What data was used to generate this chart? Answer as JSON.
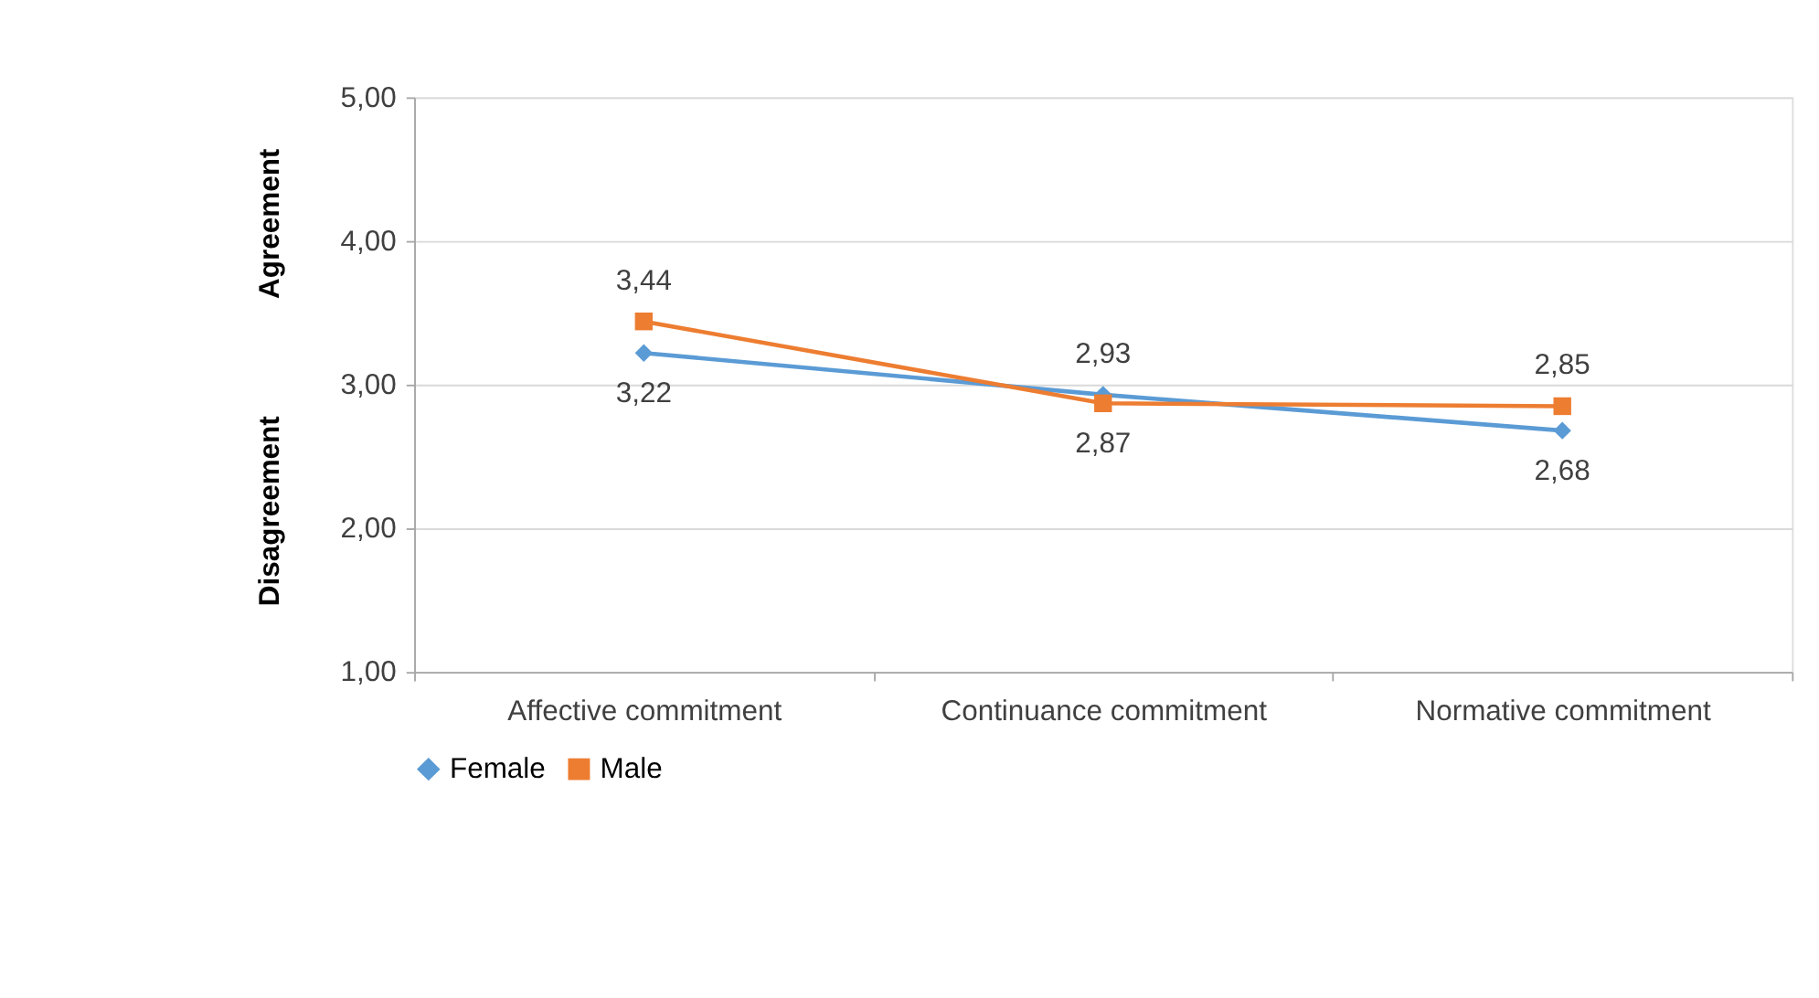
{
  "chart_data": {
    "type": "line",
    "categories": [
      "Affective commitment",
      "Continuance commitment",
      "Normative commitment"
    ],
    "series": [
      {
        "name": "Female",
        "color": "#5b9bd5",
        "marker": "diamond",
        "values": [
          3.22,
          2.93,
          2.68
        ],
        "value_labels": [
          "3,22",
          "2,93",
          "2,68"
        ]
      },
      {
        "name": "Male",
        "color": "#ed7d31",
        "marker": "square",
        "values": [
          3.44,
          2.87,
          2.85
        ],
        "value_labels": [
          "3,44",
          "2,87",
          "2,85"
        ]
      }
    ],
    "ylim": [
      1,
      5
    ],
    "yticks": [
      {
        "value": 1,
        "label": "1,00"
      },
      {
        "value": 2,
        "label": "2,00"
      },
      {
        "value": 3,
        "label": "3,00"
      },
      {
        "value": 4,
        "label": "4,00"
      },
      {
        "value": 5,
        "label": "5,00"
      }
    ],
    "grid": "y",
    "legend": "bottom",
    "line_style": "solid",
    "annotations": [
      "Agreement",
      "Disagreement"
    ]
  }
}
